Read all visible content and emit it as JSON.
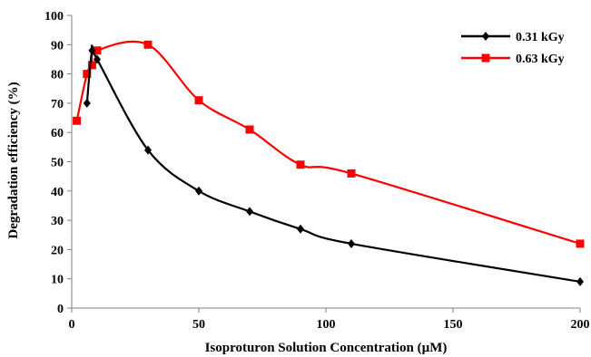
{
  "chart_data": {
    "type": "line",
    "xlabel": "Isoproturon Solution Concentration (µM)",
    "ylabel": "Degradation efficiency (%)",
    "xlim": [
      0,
      200
    ],
    "ylim": [
      0,
      100
    ],
    "xticks": [
      0,
      50,
      100,
      150,
      200
    ],
    "yticks": [
      0,
      10,
      20,
      30,
      40,
      50,
      60,
      70,
      80,
      90,
      100
    ],
    "grid": false,
    "smooth": true,
    "legend_position": "top-right",
    "series": [
      {
        "name": "0.31 kGy",
        "color": "#000000",
        "marker": "diamond",
        "x": [
          6,
          8,
          10,
          30,
          50,
          70,
          90,
          110,
          200
        ],
        "y": [
          70,
          88,
          85,
          54,
          40,
          33,
          27,
          22,
          9
        ]
      },
      {
        "name": "0.63 kGy",
        "color": "#ff0000",
        "marker": "square",
        "x": [
          2,
          6,
          8,
          10,
          30,
          50,
          70,
          90,
          110,
          200
        ],
        "y": [
          64,
          80,
          83,
          88,
          90,
          71,
          61,
          49,
          46,
          22
        ]
      }
    ]
  }
}
